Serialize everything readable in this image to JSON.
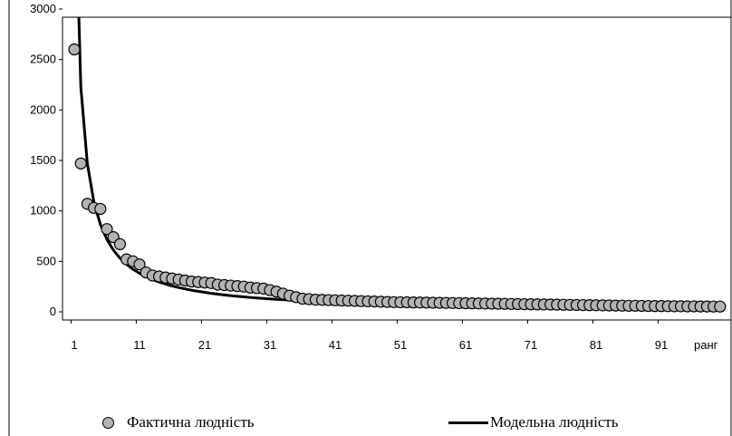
{
  "chart_data": {
    "type": "scatter",
    "title": "",
    "xlabel": "ранг",
    "ylabel": "",
    "xlim": [
      1,
      100
    ],
    "ylim": [
      0,
      3000
    ],
    "x_ticks": [
      1,
      11,
      21,
      31,
      41,
      51,
      61,
      71,
      81,
      91
    ],
    "x_tick_labels": [
      "1",
      "11",
      "21",
      "31",
      "41",
      "51",
      "61",
      "71",
      "81",
      "91"
    ],
    "y_ticks": [
      0,
      500,
      1000,
      1500,
      2000,
      2500,
      3000
    ],
    "y_tick_labels": [
      "0",
      "500",
      "1000",
      "1500",
      "2000",
      "2500",
      "3000"
    ],
    "grid": false,
    "legend_position": "bottom",
    "series": [
      {
        "name": "Фактична людність",
        "kind": "markers",
        "color": "#b3b3b3",
        "x": [
          1,
          2,
          3,
          4,
          5,
          6,
          7,
          8,
          9,
          10,
          11,
          12,
          13,
          14,
          15,
          16,
          17,
          18,
          19,
          20,
          21,
          22,
          23,
          24,
          25,
          26,
          27,
          28,
          29,
          30,
          31,
          32,
          33,
          34,
          35,
          36,
          37,
          38,
          39,
          40,
          41,
          42,
          43,
          44,
          45,
          46,
          47,
          48,
          49,
          50,
          51,
          52,
          53,
          54,
          55,
          56,
          57,
          58,
          59,
          60,
          61,
          62,
          63,
          64,
          65,
          66,
          67,
          68,
          69,
          70,
          71,
          72,
          73,
          74,
          75,
          76,
          77,
          78,
          79,
          80,
          81,
          82,
          83,
          84,
          85,
          86,
          87,
          88,
          89,
          90,
          91,
          92,
          93,
          94,
          95,
          96,
          97,
          98,
          99,
          100
        ],
        "values": [
          2600,
          1470,
          1070,
          1030,
          1020,
          820,
          740,
          670,
          520,
          500,
          470,
          390,
          360,
          350,
          340,
          330,
          320,
          310,
          300,
          295,
          290,
          285,
          270,
          265,
          260,
          255,
          250,
          240,
          235,
          230,
          215,
          200,
          180,
          160,
          145,
          130,
          125,
          120,
          118,
          116,
          114,
          112,
          110,
          108,
          106,
          104,
          102,
          100,
          98,
          96,
          95,
          94,
          93,
          92,
          91,
          90,
          89,
          88,
          87,
          86,
          85,
          84,
          83,
          82,
          81,
          80,
          79,
          78,
          77,
          76,
          75,
          74,
          73,
          72,
          71,
          70,
          69,
          68,
          67,
          66,
          65,
          64,
          63,
          62,
          61,
          60,
          60,
          59,
          58,
          57,
          57,
          56,
          55,
          55,
          54,
          54,
          53,
          53,
          52,
          52
        ]
      },
      {
        "name": "Модельна людність",
        "kind": "line",
        "color": "#000000",
        "x": [
          1,
          2,
          3,
          4,
          5,
          6,
          7,
          8,
          9,
          10,
          11,
          12,
          13,
          14,
          15,
          16,
          17,
          18,
          19,
          20,
          21,
          22,
          23,
          24,
          25,
          26,
          27,
          28,
          29,
          30,
          31,
          32,
          33,
          34,
          35,
          36,
          37,
          38,
          39,
          40,
          41,
          42,
          43,
          44,
          45,
          46,
          47,
          48,
          49,
          50,
          51,
          52,
          53,
          54,
          55,
          56,
          57,
          58,
          59,
          60,
          61,
          62,
          63,
          64,
          65,
          66,
          67,
          68,
          69,
          70,
          71,
          72,
          73,
          74,
          75,
          76,
          77,
          78,
          79,
          80,
          81,
          82,
          83,
          84,
          85,
          86,
          87,
          88,
          89,
          90,
          91,
          92,
          93,
          94,
          95,
          96,
          97,
          98,
          99,
          100
        ],
        "values": [
          4550,
          2230,
          1470,
          1090,
          866,
          717,
          612,
          532,
          471,
          422,
          382,
          349,
          320,
          296,
          275,
          257,
          241,
          227,
          214,
          203,
          193,
          183,
          175,
          167,
          160,
          154,
          148,
          142,
          137,
          132,
          128,
          124,
          120,
          116,
          112,
          109,
          106,
          103,
          100,
          98,
          95,
          93,
          91,
          89,
          87,
          85,
          83,
          81,
          79,
          78,
          76,
          75,
          73,
          72,
          71,
          69,
          68,
          67,
          66,
          65,
          64,
          63,
          62,
          61,
          60,
          59,
          58,
          57,
          56,
          55,
          55,
          54,
          53,
          52,
          52,
          51,
          50,
          50,
          49,
          48,
          48,
          47,
          47,
          46,
          45,
          45,
          44,
          44,
          43,
          43,
          42,
          42,
          41,
          41,
          41,
          40,
          40,
          39,
          39,
          38
        ]
      }
    ]
  }
}
